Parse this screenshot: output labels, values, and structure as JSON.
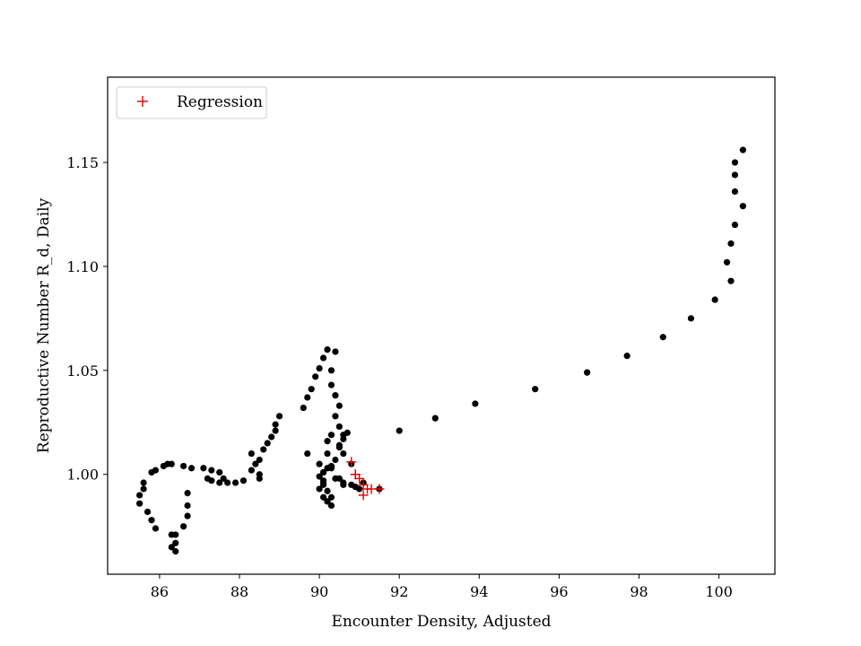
{
  "chart_data": {
    "type": "scatter",
    "xlabel": "Encounter Density, Adjusted",
    "ylabel": "Reproductive Number R_d, Daily",
    "xlim": [
      84.7,
      101.4
    ],
    "ylim": [
      0.952,
      1.191
    ],
    "x_ticks": [
      86,
      88,
      90,
      92,
      94,
      96,
      98,
      100
    ],
    "x_tick_labels": [
      "86",
      "88",
      "90",
      "92",
      "94",
      "96",
      "98",
      "100"
    ],
    "y_ticks": [
      1.0,
      1.05,
      1.1,
      1.15
    ],
    "y_tick_labels": [
      "1.00",
      "1.05",
      "1.10",
      "1.15"
    ],
    "legend": {
      "placement": "upper-left",
      "entries": [
        "Regression"
      ]
    },
    "grid": false,
    "series": [
      {
        "marker": "filled-circle",
        "color": "#000000",
        "points": [
          [
            100.6,
            1.156
          ],
          [
            100.4,
            1.15
          ],
          [
            100.4,
            1.144
          ],
          [
            100.4,
            1.136
          ],
          [
            100.6,
            1.129
          ],
          [
            100.4,
            1.12
          ],
          [
            100.3,
            1.111
          ],
          [
            100.2,
            1.102
          ],
          [
            100.3,
            1.093
          ],
          [
            99.9,
            1.084
          ],
          [
            99.3,
            1.075
          ],
          [
            98.6,
            1.066
          ],
          [
            97.7,
            1.057
          ],
          [
            96.7,
            1.049
          ],
          [
            95.4,
            1.041
          ],
          [
            93.9,
            1.034
          ],
          [
            92.9,
            1.027
          ],
          [
            92.0,
            1.021
          ],
          [
            91.5,
            0.993
          ],
          [
            90.9,
            0.994
          ],
          [
            90.6,
            0.995
          ],
          [
            90.5,
            0.998
          ],
          [
            90.8,
            1.005
          ],
          [
            90.6,
            1.01
          ],
          [
            90.5,
            1.014
          ],
          [
            90.6,
            1.017
          ],
          [
            90.7,
            1.02
          ],
          [
            90.5,
            1.023
          ],
          [
            90.4,
            1.028
          ],
          [
            90.5,
            1.033
          ],
          [
            90.4,
            1.038
          ],
          [
            90.3,
            1.043
          ],
          [
            90.3,
            1.05
          ],
          [
            90.4,
            1.059
          ],
          [
            90.2,
            1.06
          ],
          [
            90.1,
            1.056
          ],
          [
            90.0,
            1.051
          ],
          [
            89.9,
            1.047
          ],
          [
            89.8,
            1.041
          ],
          [
            89.7,
            1.037
          ],
          [
            89.6,
            1.032
          ],
          [
            89.7,
            1.01
          ],
          [
            90.0,
            1.005
          ],
          [
            90.0,
            0.999
          ],
          [
            90.1,
            0.995
          ],
          [
            90.2,
            0.992
          ],
          [
            90.3,
            0.989
          ],
          [
            90.2,
            0.987
          ],
          [
            90.3,
            0.985
          ],
          [
            90.2,
            0.987
          ],
          [
            90.1,
            0.989
          ],
          [
            90.0,
            0.993
          ],
          [
            90.1,
            0.996
          ],
          [
            90.1,
            1.001
          ],
          [
            90.3,
            1.004
          ],
          [
            90.4,
            1.007
          ],
          [
            90.5,
            1.013
          ],
          [
            90.6,
            1.019
          ],
          [
            90.3,
            1.019
          ],
          [
            90.2,
            1.016
          ],
          [
            90.2,
            1.01
          ],
          [
            90.3,
            1.003
          ],
          [
            90.4,
            0.998
          ],
          [
            90.6,
            0.996
          ],
          [
            90.8,
            0.995
          ],
          [
            91.1,
            0.996
          ],
          [
            91.0,
            0.993
          ],
          [
            90.1,
            0.997
          ],
          [
            90.1,
            1.001
          ],
          [
            90.2,
            1.003
          ],
          [
            89.0,
            1.028
          ],
          [
            88.9,
            1.024
          ],
          [
            88.9,
            1.021
          ],
          [
            88.8,
            1.018
          ],
          [
            88.7,
            1.015
          ],
          [
            88.6,
            1.012
          ],
          [
            88.5,
            1.007
          ],
          [
            88.3,
            1.01
          ],
          [
            88.4,
            1.005
          ],
          [
            88.3,
            1.002
          ],
          [
            88.5,
            1.0
          ],
          [
            88.5,
            0.998
          ],
          [
            88.1,
            0.997
          ],
          [
            87.9,
            0.996
          ],
          [
            87.7,
            0.996
          ],
          [
            87.6,
            0.998
          ],
          [
            87.5,
            0.996
          ],
          [
            87.5,
            1.001
          ],
          [
            87.3,
            1.002
          ],
          [
            87.3,
            0.997
          ],
          [
            87.1,
            1.003
          ],
          [
            87.2,
            0.998
          ],
          [
            86.8,
            1.003
          ],
          [
            86.6,
            1.004
          ],
          [
            86.7,
            0.991
          ],
          [
            86.7,
            0.985
          ],
          [
            86.7,
            0.98
          ],
          [
            86.6,
            0.975
          ],
          [
            86.4,
            0.971
          ],
          [
            86.4,
            0.967
          ],
          [
            86.3,
            0.971
          ],
          [
            86.3,
            0.965
          ],
          [
            86.4,
            0.963
          ],
          [
            85.9,
            0.974
          ],
          [
            85.8,
            0.978
          ],
          [
            85.7,
            0.982
          ],
          [
            85.5,
            0.986
          ],
          [
            85.5,
            0.99
          ],
          [
            85.6,
            0.993
          ],
          [
            85.6,
            0.996
          ],
          [
            85.8,
            1.001
          ],
          [
            85.9,
            1.002
          ],
          [
            86.1,
            1.004
          ],
          [
            86.2,
            1.005
          ],
          [
            86.3,
            1.005
          ]
        ]
      },
      {
        "name": "Regression",
        "marker": "plus",
        "color": "#e00000",
        "points": [
          [
            90.8,
            1.006
          ],
          [
            90.9,
            1.0
          ],
          [
            91.0,
            0.998
          ],
          [
            91.1,
            0.995
          ],
          [
            91.1,
            0.99
          ],
          [
            91.2,
            0.993
          ],
          [
            91.3,
            0.993
          ],
          [
            91.5,
            0.993
          ],
          [
            90.9,
            1.0
          ]
        ]
      }
    ]
  }
}
